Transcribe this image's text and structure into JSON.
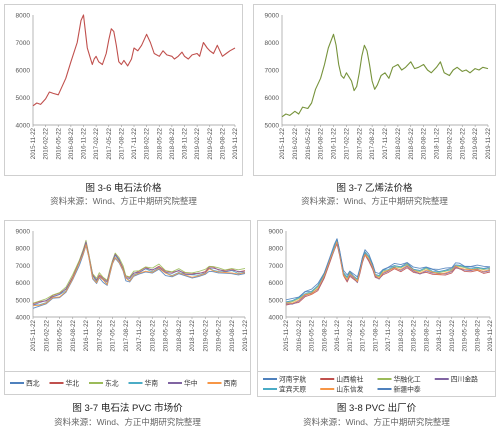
{
  "page": {
    "source_note": "资料来源：Wind、方正中期研究院整理"
  },
  "colors": {
    "carbide_price": "#c0504d",
    "ethylene_price": "#77933c",
    "north_west": "#4f81bd",
    "north_china": "#c0504d",
    "north_east": "#9bbb59",
    "central_china": "#4bacc6",
    "east_china": "#8064a2",
    "south_china": "#f79646"
  },
  "chart_data": [
    {
      "id": "fig-3-6",
      "type": "line",
      "caption": "图 3-6  电石法价格",
      "x_ticks": [
        "2015-11-22",
        "2016-02-22",
        "2016-05-22",
        "2016-08-22",
        "2016-11-22",
        "2017-02-22",
        "2017-05-22",
        "2017-08-22",
        "2017-11-22",
        "2018-02-22",
        "2018-05-22",
        "2018-08-22",
        "2018-11-22",
        "2019-02-22",
        "2019-05-22",
        "2019-08-22",
        "2019-11-22"
      ],
      "ylim": [
        4000,
        8000
      ],
      "y_ticks": [
        4000,
        5000,
        6000,
        7000,
        8000
      ],
      "legend": "none",
      "series": [
        {
          "color_key": "carbide_price",
          "x": [
            0,
            0.3,
            0.6,
            1,
            1.3,
            1.6,
            2,
            2.2,
            2.6,
            3,
            3.5,
            3.8,
            4,
            4.15,
            4.3,
            4.5,
            4.7,
            4.85,
            5,
            5.2,
            5.5,
            5.8,
            6,
            6.2,
            6.4,
            6.6,
            6.8,
            7,
            7.2,
            7.5,
            7.8,
            8,
            8.3,
            8.6,
            9,
            9.3,
            9.6,
            10,
            10.3,
            10.6,
            11,
            11.2,
            11.5,
            11.8,
            12,
            12.3,
            12.6,
            13,
            13.2,
            13.5,
            13.8,
            14,
            14.3,
            14.6,
            15,
            15.3,
            15.6,
            16
          ],
          "values": [
            4700,
            4800,
            4750,
            4950,
            5200,
            5150,
            5100,
            5300,
            5700,
            6300,
            7000,
            7800,
            8000,
            7400,
            6800,
            6500,
            6200,
            6400,
            6500,
            6300,
            6200,
            6600,
            7100,
            7500,
            7400,
            6900,
            6300,
            6200,
            6350,
            6150,
            6400,
            6800,
            6700,
            6900,
            7300,
            7000,
            6600,
            6500,
            6700,
            6550,
            6500,
            6400,
            6500,
            6650,
            6500,
            6400,
            6550,
            6600,
            6500,
            7000,
            6800,
            6700,
            6600,
            6900,
            6500,
            6600,
            6700,
            6800
          ]
        }
      ]
    },
    {
      "id": "fig-3-7a",
      "type": "line",
      "caption": "图 3-7  乙烯法价格",
      "x_ticks": [
        "2015-11-22",
        "2016-02-22",
        "2016-05-22",
        "2016-08-22",
        "2016-11-22",
        "2017-02-22",
        "2017-05-22",
        "2017-08-22",
        "2017-11-22",
        "2018-02-22",
        "2018-05-22",
        "2018-08-22",
        "2018-11-22",
        "2019-02-22",
        "2019-05-22",
        "2019-08-22",
        "2019-11-22"
      ],
      "ylim": [
        5000,
        9000
      ],
      "y_ticks": [
        5000,
        6000,
        7000,
        8000,
        9000
      ],
      "legend": "none",
      "series": [
        {
          "color_key": "ethylene_price",
          "x": [
            0,
            0.3,
            0.6,
            1,
            1.3,
            1.6,
            2,
            2.3,
            2.6,
            3,
            3.3,
            3.6,
            4,
            4.2,
            4.4,
            4.6,
            4.8,
            5,
            5.2,
            5.4,
            5.6,
            5.8,
            6,
            6.2,
            6.4,
            6.6,
            6.8,
            7,
            7.2,
            7.4,
            7.7,
            8,
            8.3,
            8.6,
            9,
            9.3,
            9.6,
            10,
            10.3,
            10.6,
            11,
            11.3,
            11.6,
            12,
            12.3,
            12.6,
            13,
            13.3,
            13.6,
            14,
            14.3,
            14.6,
            15,
            15.3,
            15.6,
            16
          ],
          "values": [
            5300,
            5400,
            5350,
            5500,
            5400,
            5650,
            5600,
            5800,
            6300,
            6700,
            7200,
            7800,
            8300,
            7900,
            7200,
            6800,
            6700,
            6900,
            6750,
            6600,
            6250,
            6400,
            6900,
            7500,
            7900,
            7700,
            7200,
            6600,
            6300,
            6450,
            6800,
            6900,
            6700,
            7100,
            7200,
            7000,
            7100,
            7300,
            7050,
            7100,
            7200,
            7000,
            6900,
            7100,
            7300,
            6900,
            6800,
            7000,
            7100,
            6950,
            7000,
            6900,
            7050,
            7000,
            7100,
            7050
          ]
        }
      ]
    },
    {
      "id": "fig-3-7b",
      "type": "line",
      "caption": "图 3-7  电石法 PVC 市场价",
      "x_ticks": [
        "2015-11-22",
        "2016-02-22",
        "2016-05-22",
        "2016-08-22",
        "2016-11-22",
        "2017-02-22",
        "2017-05-22",
        "2017-08-22",
        "2017-11-22",
        "2018-02-22",
        "2018-05-22",
        "2018-08-22",
        "2018-11-22",
        "2019-02-22",
        "2019-05-22",
        "2019-08-22",
        "2019-11-22"
      ],
      "ylim": [
        4000,
        9000
      ],
      "y_ticks": [
        4000,
        5000,
        6000,
        7000,
        8000,
        9000
      ],
      "legend": "bottom",
      "base_x": [
        0,
        0.5,
        1,
        1.5,
        2,
        2.5,
        3,
        3.5,
        3.8,
        4,
        4.2,
        4.5,
        4.8,
        5,
        5.3,
        5.6,
        5.8,
        6,
        6.2,
        6.5,
        6.8,
        7,
        7.3,
        7.6,
        8,
        8.5,
        9,
        9.5,
        10,
        10.5,
        11,
        11.5,
        12,
        12.5,
        13,
        13.3,
        13.6,
        14,
        14.5,
        15,
        15.5,
        16
      ],
      "base_values": [
        4700,
        4800,
        4900,
        5200,
        5300,
        5600,
        6300,
        7200,
        7800,
        8300,
        7600,
        6400,
        6100,
        6400,
        6200,
        6000,
        6600,
        7200,
        7600,
        7300,
        6800,
        6300,
        6200,
        6500,
        6600,
        6800,
        6700,
        6900,
        6600,
        6500,
        6650,
        6500,
        6450,
        6500,
        6600,
        6850,
        6800,
        6700,
        6650,
        6700,
        6600,
        6650
      ],
      "series": [
        {
          "name": "西北",
          "color_key": "north_west",
          "offset": -150
        },
        {
          "name": "华北",
          "color_key": "north_china",
          "offset": 60
        },
        {
          "name": "东北",
          "color_key": "north_east",
          "offset": 130
        },
        {
          "name": "华南",
          "color_key": "central_china",
          "offset": -40
        },
        {
          "name": "华中",
          "color_key": "east_china",
          "offset": 20
        },
        {
          "name": "西南",
          "color_key": "south_china",
          "offset": -90
        }
      ]
    },
    {
      "id": "fig-3-8",
      "type": "line",
      "caption": "图 3-8 PVC 出厂价",
      "x_ticks": [
        "2015-11-22",
        "2016-02-22",
        "2016-05-22",
        "2016-08-22",
        "2016-11-22",
        "2017-02-22",
        "2017-05-22",
        "2017-08-22",
        "2017-11-22",
        "2018-02-22",
        "2018-05-22",
        "2018-08-22",
        "2018-11-22",
        "2019-02-22",
        "2019-05-22",
        "2019-08-22",
        "2019-11-22"
      ],
      "ylim": [
        4000,
        9000
      ],
      "y_ticks": [
        4000,
        5000,
        6000,
        7000,
        8000,
        9000
      ],
      "legend": "bottom",
      "base_x": [
        0,
        0.5,
        1,
        1.5,
        2,
        2.5,
        3,
        3.5,
        3.8,
        4,
        4.2,
        4.5,
        4.8,
        5,
        5.3,
        5.6,
        5.8,
        6,
        6.2,
        6.5,
        6.8,
        7,
        7.3,
        7.6,
        8,
        8.5,
        9,
        9.5,
        10,
        10.5,
        11,
        11.5,
        12,
        12.5,
        13,
        13.3,
        13.6,
        14,
        14.5,
        15,
        15.5,
        16
      ],
      "base_values": [
        4800,
        4850,
        5000,
        5300,
        5400,
        5700,
        6400,
        7400,
        8000,
        8400,
        7700,
        6500,
        6200,
        6500,
        6300,
        6100,
        6700,
        7300,
        7700,
        7400,
        6900,
        6400,
        6300,
        6600,
        6700,
        6900,
        6800,
        7000,
        6700,
        6600,
        6750,
        6600,
        6550,
        6600,
        6700,
        6950,
        6900,
        6800,
        6750,
        6800,
        6700,
        6750
      ],
      "series": [
        {
          "name": "河南宇航",
          "color_key": "north_west",
          "offset": 120
        },
        {
          "name": "山西榆社",
          "color_key": "north_china",
          "offset": -120
        },
        {
          "name": "华融化工",
          "color_key": "north_east",
          "offset": 40
        },
        {
          "name": "四川金路",
          "color_key": "east_china",
          "offset": -60
        },
        {
          "name": "宜宾天原",
          "color_key": "central_china",
          "offset": 80
        },
        {
          "name": "山东信发",
          "color_key": "south_china",
          "offset": -20
        },
        {
          "name": "新疆中泰",
          "color_key": "north_west",
          "offset": 200
        }
      ]
    }
  ]
}
